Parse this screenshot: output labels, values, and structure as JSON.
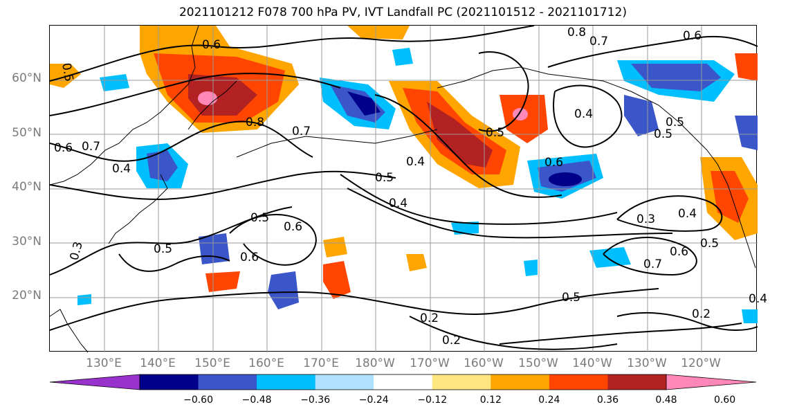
{
  "title": "2021101212 F078 700 hPa PV, IVT Landfall PC (2021101512 - 2021101712)",
  "map": {
    "projection": "plate-carree",
    "lat_labels": [
      "60°N",
      "50°N",
      "40°N",
      "30°N",
      "20°N"
    ],
    "lon_labels": [
      "130°E",
      "140°E",
      "150°E",
      "160°E",
      "170°E",
      "180°W",
      "170°W",
      "160°W",
      "150°W",
      "140°W",
      "130°W",
      "120°W"
    ],
    "contour_labels": [
      "0.5",
      "0.6",
      "0.8",
      "0.7",
      "0.6",
      "0.6",
      "0.7",
      "0.4",
      "0.8",
      "0.7",
      "0.5",
      "0.4",
      "0.5",
      "0.4",
      "0.6",
      "0.4",
      "0.5",
      "0.5",
      "0.6",
      "0.5",
      "0.6",
      "0.3",
      "0.3",
      "0.7",
      "0.6",
      "0.5",
      "0.4",
      "0.5",
      "0.2",
      "0.2",
      "0.2",
      "0.4",
      "0.5"
    ]
  },
  "colorbar": {
    "ticks": [
      "−0.60",
      "−0.48",
      "−0.36",
      "−0.24",
      "−0.12",
      "0.12",
      "0.24",
      "0.36",
      "0.48",
      "0.60"
    ],
    "colors": [
      "#9932cc",
      "#00008b",
      "#3a56c8",
      "#00bfff",
      "#b0e2ff",
      "#ffffff",
      "#ffe680",
      "#ffa500",
      "#ff4500",
      "#b22222",
      "#ff88b8"
    ]
  }
}
